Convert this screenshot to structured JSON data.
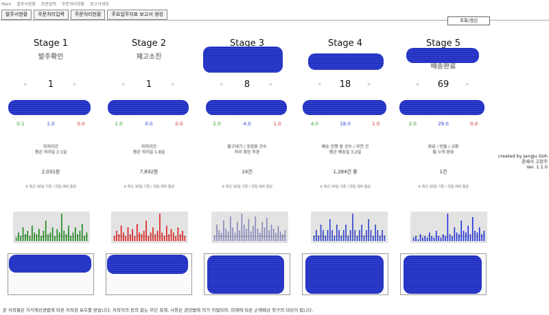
{
  "topmenu": [
    "Main",
    "발주서현황",
    "주문입력",
    "주문처리현황",
    "보고서생성"
  ],
  "tabs": [
    "발주서현황",
    "주문처리입력",
    "주문처리현황",
    "주요업무지표 보고서 생성"
  ],
  "refresh_label": "조회/갱신",
  "stages": [
    {
      "title": "Stage 1",
      "subtitle": "발주확인",
      "count": "1",
      "ratios": [
        "0.1",
        "1.0",
        "0.0"
      ],
      "desc_line1": "미처리건",
      "desc_line2": "평균 처리일 2.1일",
      "amount": "2,031원",
      "note": "※ 최근 30일 기준 / 전일 대비 증감"
    },
    {
      "title": "Stage 2",
      "subtitle": "재고소진",
      "count": "1",
      "ratios": [
        "1.0",
        "0.0",
        "0.0"
      ],
      "desc_line1": "미처리건",
      "desc_line2": "평균 처리일 1.8일",
      "amount": "7,832원",
      "note": "※ 최근 30일 기준 / 전일 대비 증감"
    },
    {
      "title": "Stage 3",
      "subtitle": "",
      "count": "8",
      "ratios": [
        "2.0",
        "4.0",
        "1.0"
      ],
      "desc_line1": "출고대기 / 포장중 건수",
      "desc_line2": "처리 중인 주문",
      "amount": "14건",
      "note": "※ 최근 30일 기준 / 전일 대비 증감"
    },
    {
      "title": "Stage 4",
      "subtitle": "",
      "count": "18",
      "ratios": [
        "4.0",
        "18.0",
        "1.0"
      ],
      "desc_line1": "배송 진행 중 건수 / 지연 건",
      "desc_line2": "평균 배송일 3.2일",
      "amount": "1,284건 중",
      "note": "※ 최근 30일 기준 / 전일 대비 증감"
    },
    {
      "title": "Stage 5",
      "subtitle": "배송완료",
      "count": "69",
      "ratios": [
        "2.0",
        "29.0",
        "0.0"
      ],
      "desc_line1": "완료 / 반품 / 교환",
      "desc_line2": "월 누적 완료",
      "amount": "1건",
      "note": "※ 최근 30일 기준 / 전일 대비 증감"
    }
  ],
  "charts": [
    {
      "bar_color": "#1a8a1a",
      "values": [
        2,
        5,
        3,
        8,
        4,
        6,
        3,
        9,
        5,
        4,
        7,
        3,
        6,
        12,
        4,
        5,
        8,
        3,
        7,
        5,
        16,
        6,
        4,
        9,
        3,
        5,
        8,
        4,
        6,
        10,
        3,
        5
      ]
    },
    {
      "bar_color": "#e02020",
      "values": [
        3,
        6,
        4,
        9,
        5,
        3,
        8,
        4,
        7,
        3,
        10,
        5,
        4,
        6,
        12,
        3,
        5,
        8,
        4,
        6,
        16,
        5,
        3,
        9,
        4,
        7,
        5,
        3,
        8,
        4,
        6,
        3
      ]
    },
    {
      "bar_color": "#8888bb",
      "values": [
        4,
        12,
        8,
        6,
        15,
        9,
        7,
        18,
        10,
        6,
        14,
        8,
        20,
        12,
        9,
        16,
        7,
        11,
        18,
        9,
        6,
        14,
        10,
        17,
        8,
        12,
        9,
        6,
        11,
        7,
        5,
        8
      ]
    },
    {
      "bar_color": "#3344cc",
      "values": [
        1,
        2,
        1,
        3,
        2,
        1,
        2,
        4,
        2,
        1,
        3,
        2,
        1,
        2,
        3,
        1,
        2,
        5,
        2,
        1,
        2,
        3,
        1,
        2,
        4,
        2,
        1,
        3,
        2,
        1,
        2,
        1
      ]
    },
    {
      "bar_color": "#2233dd",
      "values": [
        2,
        3,
        1,
        4,
        2,
        3,
        2,
        5,
        3,
        2,
        6,
        3,
        2,
        4,
        3,
        16,
        4,
        3,
        8,
        5,
        4,
        12,
        6,
        5,
        9,
        4,
        14,
        6,
        5,
        8,
        4,
        6
      ]
    }
  ],
  "credit": {
    "line1": "created by JangJu Goh",
    "line2": "관세사 고장주",
    "line3": "Ver. 1.1.0"
  },
  "footer": "본 저작물은 지식재산권법에 따른 저작권 보호를 받습니다. 저작자의 동의 없는 무단 복제, 사용은 관련법에 의거 처벌되며, 피해에 따른 손해배상 청구의 대상이 됩니다."
}
